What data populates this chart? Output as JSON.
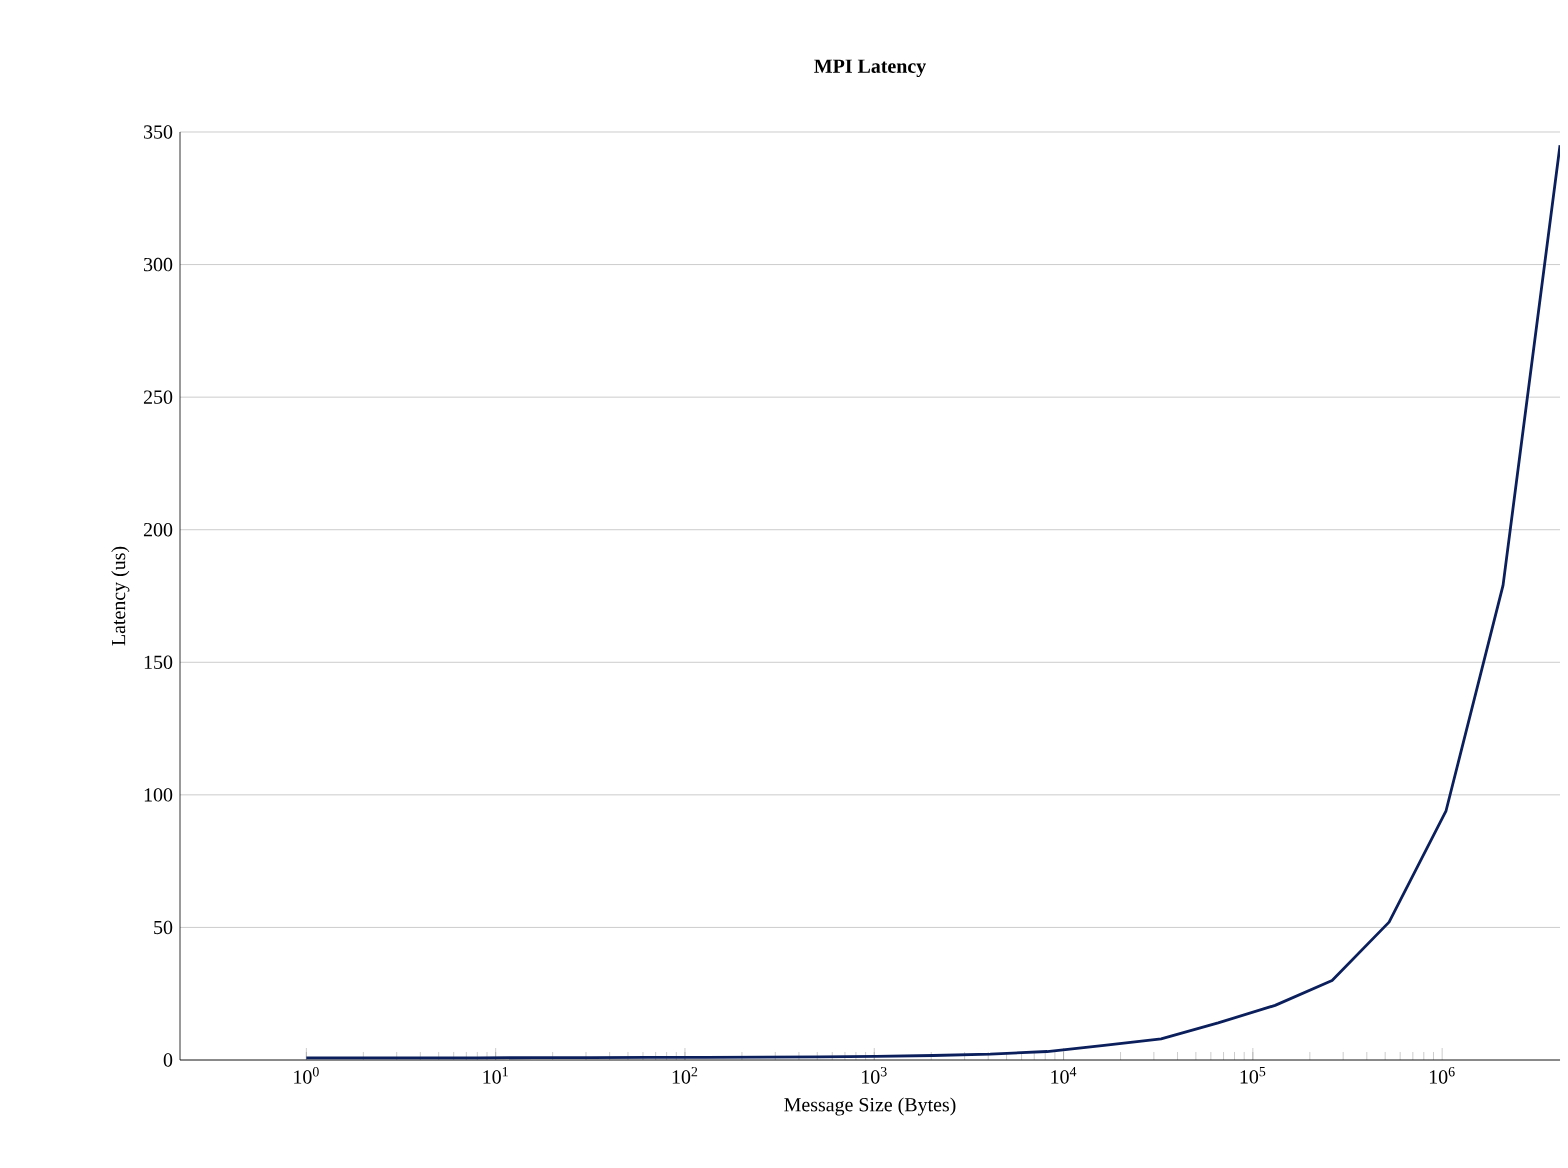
{
  "chart_data": {
    "type": "line",
    "title": "MPI Latency",
    "xlabel": "Message Size (Bytes)",
    "ylabel": "Latency (us)",
    "log": "x",
    "grid": "y",
    "marker": "none",
    "line_style": "solid",
    "xlim": [
      0.215,
      4194304
    ],
    "ylim": [
      0,
      350
    ],
    "xticks": [
      {
        "value": 1,
        "label": "10$^{0}$"
      },
      {
        "value": 10,
        "label": "10$^{1}$"
      },
      {
        "value": 100,
        "label": "10$^{2}$"
      },
      {
        "value": 1000,
        "label": "10$^{3}$"
      },
      {
        "value": 10000,
        "label": "10$^{4}$"
      },
      {
        "value": 100000,
        "label": "10$^{5}$"
      },
      {
        "value": 1000000,
        "label": "10$^{6}$"
      }
    ],
    "yticks": [
      0,
      50,
      100,
      150,
      200,
      250,
      300,
      350
    ],
    "x": [
      1,
      2,
      4,
      8,
      16,
      32,
      64,
      128,
      256,
      512,
      1024,
      2048,
      4096,
      8192,
      16384,
      32768,
      65536,
      131072,
      262144,
      524288,
      1048576,
      2097152,
      4194304
    ],
    "series": [
      {
        "color": "#0b1f5c",
        "values": [
          0.8,
          0.8,
          0.8,
          0.8,
          0.9,
          0.9,
          1.0,
          1.0,
          1.1,
          1.2,
          1.4,
          1.7,
          2.2,
          3.2,
          5.5,
          8,
          14,
          20.6,
          30,
          52,
          94,
          179,
          345
        ]
      }
    ]
  }
}
